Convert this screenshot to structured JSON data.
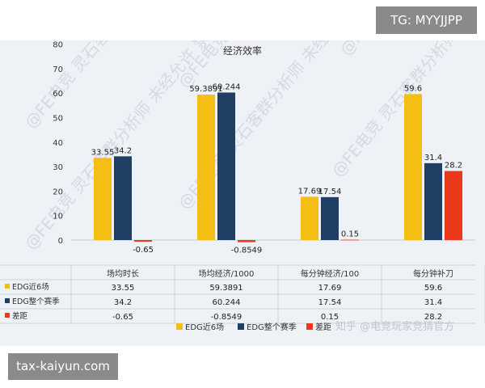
{
  "badges": {
    "top": "TG: MYYJJPP",
    "bottom": "tax-kaiyun.com"
  },
  "watermarks": {
    "channel": "知乎 @电竞玩家竞猜官方",
    "overlay": "@FE电竞 灵石客群分析师 未经允许 禁止转载"
  },
  "colors": {
    "EDG近6场": "#f5be14",
    "EDG整个赛季": "#203f65",
    "差距": "#ea3a1b"
  },
  "chart_data": {
    "type": "bar",
    "title": "经济效率",
    "categories": [
      "场均时长",
      "场均经济/1000",
      "每分钟经济/100",
      "每分钟补刀"
    ],
    "series": [
      {
        "name": "EDG近6场",
        "values": [
          33.55,
          59.3891,
          17.69,
          59.6
        ],
        "labels": [
          "33.55",
          "59.3891",
          "17.69",
          "59.6"
        ]
      },
      {
        "name": "EDG整个赛季",
        "values": [
          34.2,
          60.244,
          17.54,
          31.4
        ],
        "labels": [
          "34.2",
          "60.244",
          "17.54",
          "31.4"
        ]
      },
      {
        "name": "差距",
        "values": [
          -0.65,
          -0.8549,
          0.15,
          28.2
        ],
        "labels": [
          "-0.65",
          "-0.8549",
          "0.15",
          "28.2"
        ]
      }
    ],
    "ylim": [
      0,
      80
    ],
    "yticks": [
      "0",
      "10",
      "20",
      "30",
      "40",
      "50",
      "60",
      "70",
      "80"
    ],
    "grid": false,
    "legend": "bottom",
    "data_table": true
  }
}
